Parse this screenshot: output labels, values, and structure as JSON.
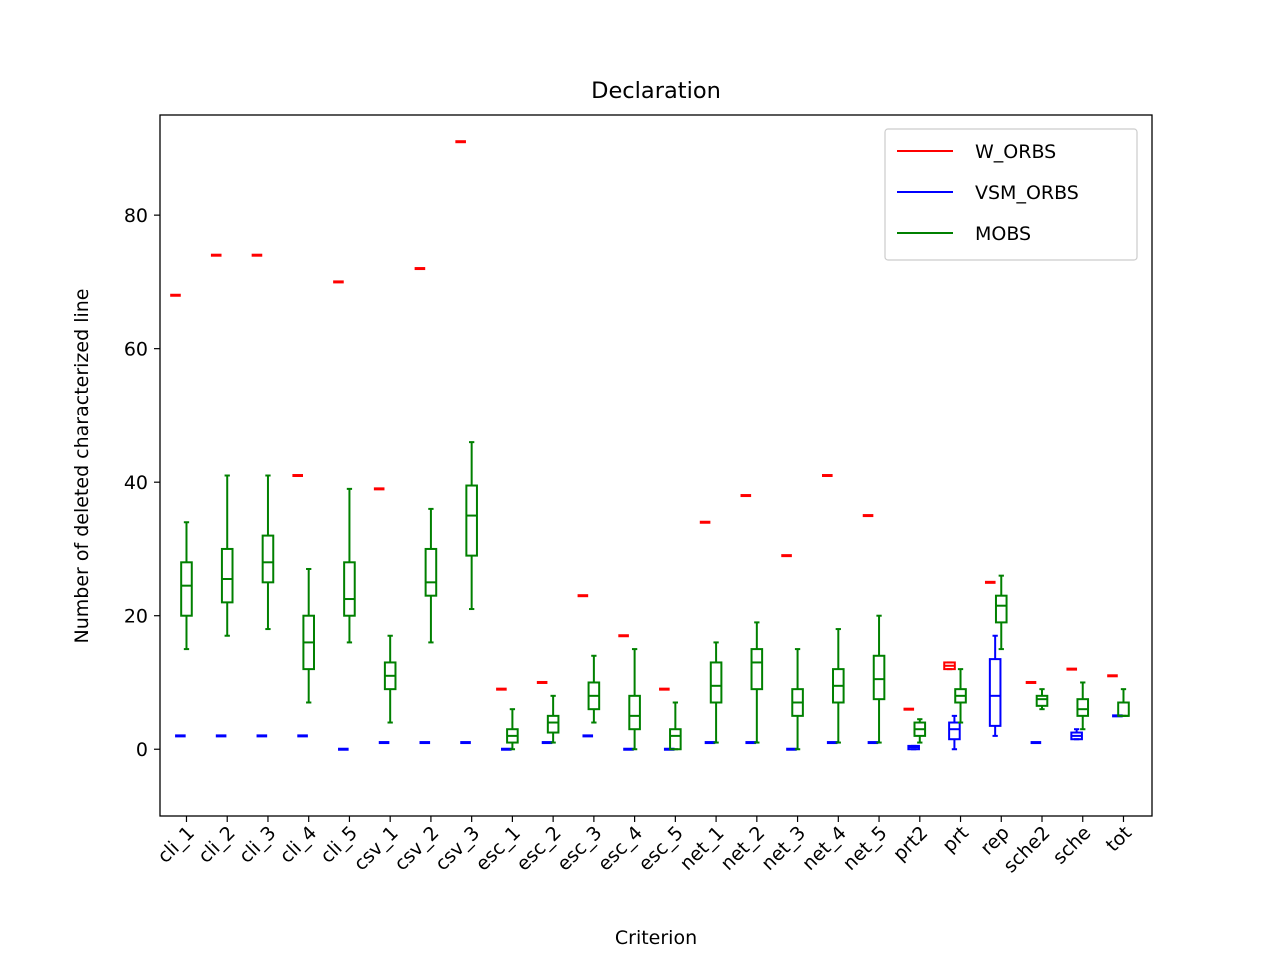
{
  "chart_data": {
    "type": "box",
    "title": "Declaration",
    "xlabel": "Criterion",
    "ylabel": "Number of deleted characterized line",
    "ylim": [
      -10,
      95
    ],
    "yticks": [
      0,
      20,
      40,
      60,
      80
    ],
    "grid": false,
    "legend_position": "top-right",
    "categories": [
      "cli_1",
      "cli_2",
      "cli_3",
      "cli_4",
      "cli_5",
      "csv_1",
      "csv_2",
      "csv_3",
      "esc_1",
      "esc_2",
      "esc_3",
      "esc_4",
      "esc_5",
      "net_1",
      "net_2",
      "net_3",
      "net_4",
      "net_5",
      "prt2",
      "prt",
      "rep",
      "sche2",
      "sche",
      "tot"
    ],
    "series": [
      {
        "name": "W_ORBS",
        "color": "#ff0000",
        "boxes": [
          {
            "category": "cli_1",
            "min": 68,
            "q1": 68,
            "median": 68,
            "q3": 68,
            "max": 68
          },
          {
            "category": "cli_2",
            "min": 74,
            "q1": 74,
            "median": 74,
            "q3": 74,
            "max": 74
          },
          {
            "category": "cli_3",
            "min": 74,
            "q1": 74,
            "median": 74,
            "q3": 74,
            "max": 74
          },
          {
            "category": "cli_4",
            "min": 41,
            "q1": 41,
            "median": 41,
            "q3": 41,
            "max": 41
          },
          {
            "category": "cli_5",
            "min": 70,
            "q1": 70,
            "median": 70,
            "q3": 70,
            "max": 70
          },
          {
            "category": "csv_1",
            "min": 39,
            "q1": 39,
            "median": 39,
            "q3": 39,
            "max": 39
          },
          {
            "category": "csv_2",
            "min": 72,
            "q1": 72,
            "median": 72,
            "q3": 72,
            "max": 72
          },
          {
            "category": "csv_3",
            "min": 91,
            "q1": 91,
            "median": 91,
            "q3": 91,
            "max": 91
          },
          {
            "category": "esc_1",
            "min": 9,
            "q1": 9,
            "median": 9,
            "q3": 9,
            "max": 9
          },
          {
            "category": "esc_2",
            "min": 10,
            "q1": 10,
            "median": 10,
            "q3": 10,
            "max": 10
          },
          {
            "category": "esc_3",
            "min": 23,
            "q1": 23,
            "median": 23,
            "q3": 23,
            "max": 23
          },
          {
            "category": "esc_4",
            "min": 17,
            "q1": 17,
            "median": 17,
            "q3": 17,
            "max": 17
          },
          {
            "category": "esc_5",
            "min": 9,
            "q1": 9,
            "median": 9,
            "q3": 9,
            "max": 9
          },
          {
            "category": "net_1",
            "min": 34,
            "q1": 34,
            "median": 34,
            "q3": 34,
            "max": 34
          },
          {
            "category": "net_2",
            "min": 38,
            "q1": 38,
            "median": 38,
            "q3": 38,
            "max": 38
          },
          {
            "category": "net_3",
            "min": 29,
            "q1": 29,
            "median": 29,
            "q3": 29,
            "max": 29
          },
          {
            "category": "net_4",
            "min": 41,
            "q1": 41,
            "median": 41,
            "q3": 41,
            "max": 41
          },
          {
            "category": "net_5",
            "min": 35,
            "q1": 35,
            "median": 35,
            "q3": 35,
            "max": 35
          },
          {
            "category": "prt2",
            "min": 6,
            "q1": 6,
            "median": 6,
            "q3": 6,
            "max": 6
          },
          {
            "category": "prt",
            "min": 12,
            "q1": 12,
            "median": 12.5,
            "q3": 13,
            "max": 13
          },
          {
            "category": "rep",
            "min": 25,
            "q1": 25,
            "median": 25,
            "q3": 25,
            "max": 25
          },
          {
            "category": "sche2",
            "min": 10,
            "q1": 10,
            "median": 10,
            "q3": 10,
            "max": 10
          },
          {
            "category": "sche",
            "min": 12,
            "q1": 12,
            "median": 12,
            "q3": 12,
            "max": 12
          },
          {
            "category": "tot",
            "min": 11,
            "q1": 11,
            "median": 11,
            "q3": 11,
            "max": 11
          }
        ]
      },
      {
        "name": "VSM_ORBS",
        "color": "#0000ff",
        "boxes": [
          {
            "category": "cli_1",
            "min": 2,
            "q1": 2,
            "median": 2,
            "q3": 2,
            "max": 2
          },
          {
            "category": "cli_2",
            "min": 2,
            "q1": 2,
            "median": 2,
            "q3": 2,
            "max": 2
          },
          {
            "category": "cli_3",
            "min": 2,
            "q1": 2,
            "median": 2,
            "q3": 2,
            "max": 2
          },
          {
            "category": "cli_4",
            "min": 2,
            "q1": 2,
            "median": 2,
            "q3": 2,
            "max": 2
          },
          {
            "category": "cli_5",
            "min": 0,
            "q1": 0,
            "median": 0,
            "q3": 0,
            "max": 0
          },
          {
            "category": "csv_1",
            "min": 1,
            "q1": 1,
            "median": 1,
            "q3": 1,
            "max": 1
          },
          {
            "category": "csv_2",
            "min": 1,
            "q1": 1,
            "median": 1,
            "q3": 1,
            "max": 1
          },
          {
            "category": "csv_3",
            "min": 1,
            "q1": 1,
            "median": 1,
            "q3": 1,
            "max": 1
          },
          {
            "category": "esc_1",
            "min": 0,
            "q1": 0,
            "median": 0,
            "q3": 0,
            "max": 0
          },
          {
            "category": "esc_2",
            "min": 1,
            "q1": 1,
            "median": 1,
            "q3": 1,
            "max": 1
          },
          {
            "category": "esc_3",
            "min": 2,
            "q1": 2,
            "median": 2,
            "q3": 2,
            "max": 2
          },
          {
            "category": "esc_4",
            "min": 0,
            "q1": 0,
            "median": 0,
            "q3": 0,
            "max": 0
          },
          {
            "category": "esc_5",
            "min": 0,
            "q1": 0,
            "median": 0,
            "q3": 0,
            "max": 0
          },
          {
            "category": "net_1",
            "min": 1,
            "q1": 1,
            "median": 1,
            "q3": 1,
            "max": 1
          },
          {
            "category": "net_2",
            "min": 1,
            "q1": 1,
            "median": 1,
            "q3": 1,
            "max": 1
          },
          {
            "category": "net_3",
            "min": 0,
            "q1": 0,
            "median": 0,
            "q3": 0,
            "max": 0
          },
          {
            "category": "net_4",
            "min": 1,
            "q1": 1,
            "median": 1,
            "q3": 1,
            "max": 1
          },
          {
            "category": "net_5",
            "min": 1,
            "q1": 1,
            "median": 1,
            "q3": 1,
            "max": 1
          },
          {
            "category": "prt2",
            "min": 0,
            "q1": 0,
            "median": 0.3,
            "q3": 0.5,
            "max": 0.5
          },
          {
            "category": "prt",
            "min": 0,
            "q1": 1.5,
            "median": 3,
            "q3": 4,
            "max": 5
          },
          {
            "category": "rep",
            "min": 2,
            "q1": 3.5,
            "median": 8,
            "q3": 13.5,
            "max": 17
          },
          {
            "category": "sche2",
            "min": 1,
            "q1": 1,
            "median": 1,
            "q3": 1,
            "max": 1
          },
          {
            "category": "sche",
            "min": 1.5,
            "q1": 1.5,
            "median": 2,
            "q3": 2.5,
            "max": 3
          },
          {
            "category": "tot",
            "min": 5,
            "q1": 5,
            "median": 5,
            "q3": 5,
            "max": 5
          }
        ]
      },
      {
        "name": "MOBS",
        "color": "#008000",
        "boxes": [
          {
            "category": "cli_1",
            "min": 15,
            "q1": 20,
            "median": 24.5,
            "q3": 28,
            "max": 34
          },
          {
            "category": "cli_2",
            "min": 17,
            "q1": 22,
            "median": 25.5,
            "q3": 30,
            "max": 41
          },
          {
            "category": "cli_3",
            "min": 18,
            "q1": 25,
            "median": 28,
            "q3": 32,
            "max": 41
          },
          {
            "category": "cli_4",
            "min": 7,
            "q1": 12,
            "median": 16,
            "q3": 20,
            "max": 27
          },
          {
            "category": "cli_5",
            "min": 16,
            "q1": 20,
            "median": 22.5,
            "q3": 28,
            "max": 39
          },
          {
            "category": "csv_1",
            "min": 4,
            "q1": 9,
            "median": 11,
            "q3": 13,
            "max": 17
          },
          {
            "category": "csv_2",
            "min": 16,
            "q1": 23,
            "median": 25,
            "q3": 30,
            "max": 36
          },
          {
            "category": "csv_3",
            "min": 21,
            "q1": 29,
            "median": 35,
            "q3": 39.5,
            "max": 46
          },
          {
            "category": "esc_1",
            "min": 0,
            "q1": 1,
            "median": 2,
            "q3": 3,
            "max": 6
          },
          {
            "category": "esc_2",
            "min": 1,
            "q1": 2.5,
            "median": 4,
            "q3": 5,
            "max": 8
          },
          {
            "category": "esc_3",
            "min": 4,
            "q1": 6,
            "median": 8,
            "q3": 10,
            "max": 14
          },
          {
            "category": "esc_4",
            "min": 0,
            "q1": 3,
            "median": 5,
            "q3": 8,
            "max": 15
          },
          {
            "category": "esc_5",
            "min": 0,
            "q1": 0,
            "median": 2,
            "q3": 3,
            "max": 7
          },
          {
            "category": "net_1",
            "min": 1,
            "q1": 7,
            "median": 9.5,
            "q3": 13,
            "max": 16
          },
          {
            "category": "net_2",
            "min": 1,
            "q1": 9,
            "median": 13,
            "q3": 15,
            "max": 19
          },
          {
            "category": "net_3",
            "min": 0,
            "q1": 5,
            "median": 7,
            "q3": 9,
            "max": 15
          },
          {
            "category": "net_4",
            "min": 1,
            "q1": 7,
            "median": 9.5,
            "q3": 12,
            "max": 18
          },
          {
            "category": "net_5",
            "min": 1,
            "q1": 7.5,
            "median": 10.5,
            "q3": 14,
            "max": 20
          },
          {
            "category": "prt2",
            "min": 1,
            "q1": 2,
            "median": 3,
            "q3": 4,
            "max": 4.5
          },
          {
            "category": "prt",
            "min": 4,
            "q1": 7,
            "median": 8,
            "q3": 9,
            "max": 12
          },
          {
            "category": "rep",
            "min": 15,
            "q1": 19,
            "median": 21.5,
            "q3": 23,
            "max": 26
          },
          {
            "category": "sche2",
            "min": 6,
            "q1": 6.5,
            "median": 7.5,
            "q3": 8,
            "max": 9
          },
          {
            "category": "sche",
            "min": 3,
            "q1": 5,
            "median": 6,
            "q3": 7.5,
            "max": 10
          },
          {
            "category": "tot",
            "min": 5,
            "q1": 5,
            "median": 5,
            "q3": 7,
            "max": 9
          }
        ]
      }
    ]
  }
}
